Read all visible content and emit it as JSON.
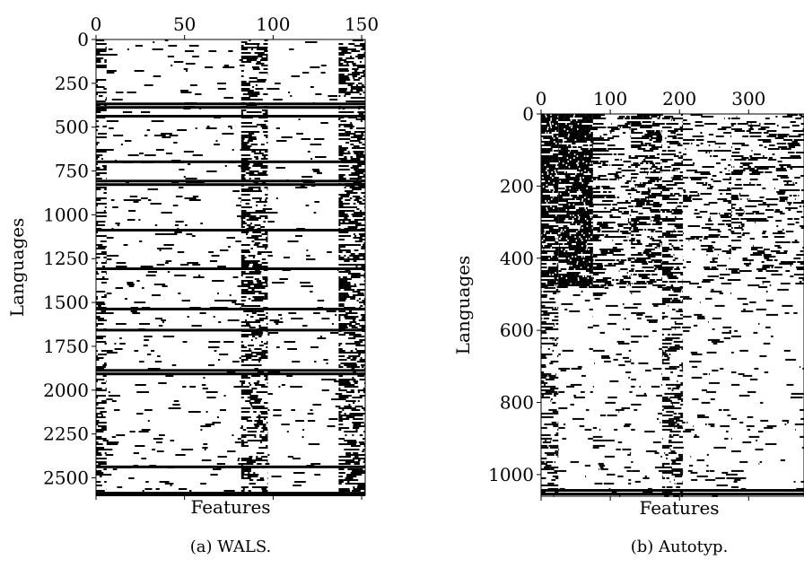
{
  "chart_data": [
    {
      "type": "heatmap",
      "caption": "(a) WALS.",
      "xlabel": "Features",
      "ylabel": "Languages",
      "x_range": [
        0,
        152
      ],
      "y_range": [
        0,
        2600
      ],
      "x_ticks": [
        "0",
        "50",
        "100",
        "150"
      ],
      "y_ticks": [
        "0",
        "250",
        "500",
        "750",
        "1000",
        "1250",
        "1500",
        "1750",
        "2000",
        "2250",
        "2500"
      ],
      "x_tick_values": [
        0,
        50,
        100,
        150
      ],
      "y_tick_values": [
        0,
        250,
        500,
        750,
        1000,
        1250,
        1500,
        1750,
        2000,
        2250,
        2500
      ],
      "bands": [
        {
          "x": [
            0,
            6
          ],
          "density": 0.45
        },
        {
          "x": [
            6,
            82
          ],
          "density": 0.07
        },
        {
          "x": [
            82,
            97
          ],
          "density": 0.55
        },
        {
          "x": [
            97,
            137
          ],
          "density": 0.06
        },
        {
          "x": [
            137,
            152
          ],
          "density": 0.6
        }
      ],
      "full_rows": [
        360,
        380,
        430,
        690,
        800,
        820,
        1080,
        1300,
        1530,
        1650,
        1880,
        1900,
        2430,
        2580,
        2590
      ],
      "colors": {
        "present": "#000000",
        "absent": "#ffffff"
      }
    },
    {
      "type": "heatmap",
      "caption": "(b) Autotyp.",
      "xlabel": "Features",
      "ylabel": "Languages",
      "x_range": [
        0,
        380
      ],
      "y_range": [
        0,
        1060
      ],
      "x_ticks": [
        "0",
        "100",
        "200",
        "300"
      ],
      "y_ticks": [
        "0",
        "200",
        "400",
        "600",
        "800",
        "1000"
      ],
      "x_tick_values": [
        0,
        100,
        200,
        300
      ],
      "y_tick_values": [
        0,
        200,
        400,
        600,
        800,
        1000
      ],
      "bands": [
        {
          "x": [
            0,
            25
          ],
          "y": [
            0,
            480
          ],
          "density": 0.75
        },
        {
          "x": [
            25,
            75
          ],
          "y": [
            0,
            480
          ],
          "density": 0.85
        },
        {
          "x": [
            75,
            130
          ],
          "y": [
            0,
            480
          ],
          "density": 0.35
        },
        {
          "x": [
            130,
            175
          ],
          "y": [
            0,
            480
          ],
          "density": 0.5
        },
        {
          "x": [
            175,
            205
          ],
          "y": [
            0,
            480
          ],
          "density": 0.45
        },
        {
          "x": [
            205,
            275
          ],
          "y": [
            0,
            480
          ],
          "density": 0.25
        },
        {
          "x": [
            275,
            380
          ],
          "y": [
            0,
            480
          ],
          "density": 0.3
        },
        {
          "x": [
            0,
            25
          ],
          "y": [
            480,
            1060
          ],
          "density": 0.4
        },
        {
          "x": [
            25,
            75
          ],
          "y": [
            480,
            1060
          ],
          "density": 0.05
        },
        {
          "x": [
            75,
            130
          ],
          "y": [
            480,
            1060
          ],
          "density": 0.1
        },
        {
          "x": [
            130,
            175
          ],
          "y": [
            480,
            1060
          ],
          "density": 0.08
        },
        {
          "x": [
            175,
            205
          ],
          "y": [
            480,
            1060
          ],
          "density": 0.4
        },
        {
          "x": [
            205,
            275
          ],
          "y": [
            480,
            1060
          ],
          "density": 0.12
        },
        {
          "x": [
            275,
            380
          ],
          "y": [
            480,
            1060
          ],
          "density": 0.06
        }
      ],
      "full_rows": [
        1040,
        1050
      ],
      "colors": {
        "present": "#000000",
        "absent": "#ffffff"
      }
    }
  ]
}
